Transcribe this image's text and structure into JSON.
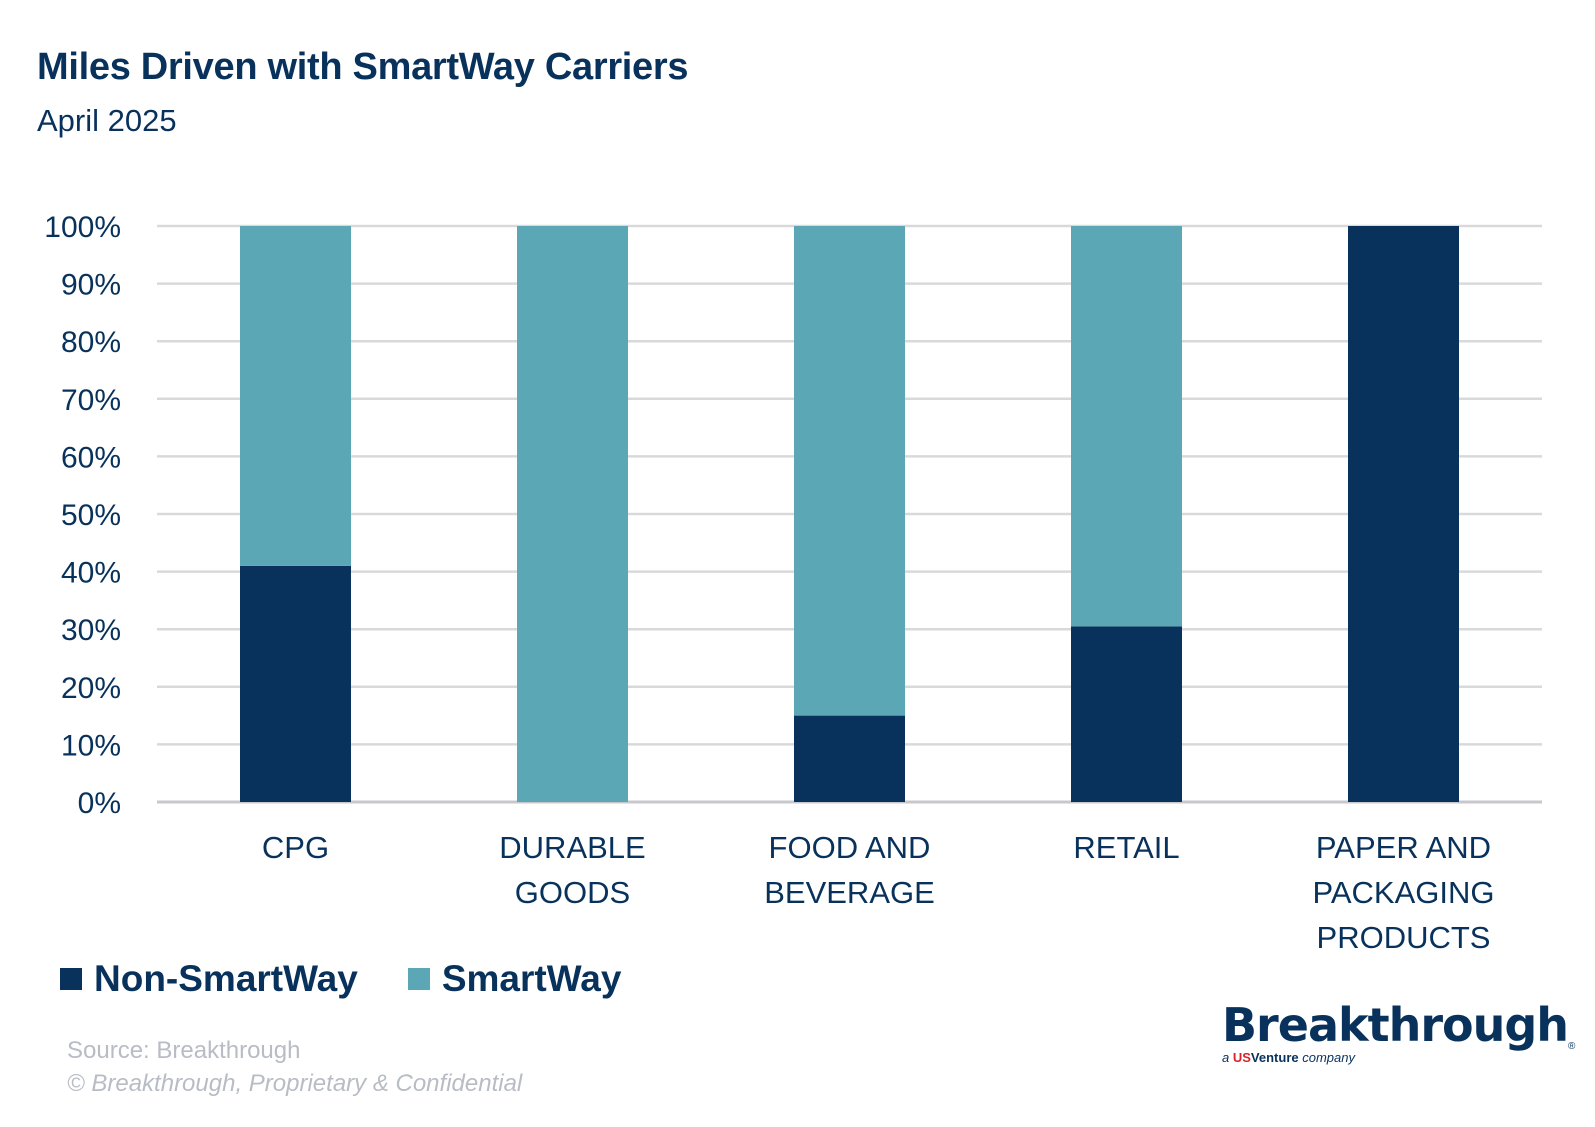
{
  "header": {
    "title": "Miles Driven with SmartWay Carriers",
    "subtitle": "April 2025"
  },
  "colors": {
    "non_smartway": "#08325c",
    "smartway": "#5ba7b5",
    "grid": "#d9d9d9",
    "text": "#08325c",
    "footer_text": "#b8bcc4"
  },
  "chart_data": {
    "type": "bar",
    "stacked": true,
    "title": "Miles Driven with SmartWay Carriers",
    "subtitle": "April 2025",
    "xlabel": "",
    "ylabel": "",
    "categories": [
      [
        "CPG"
      ],
      [
        "DURABLE",
        "GOODS"
      ],
      [
        "FOOD AND",
        "BEVERAGE"
      ],
      [
        "RETAIL"
      ],
      [
        "PAPER AND",
        "PACKAGING",
        "PRODUCTS"
      ]
    ],
    "category_names": [
      "CPG",
      "DURABLE GOODS",
      "FOOD AND BEVERAGE",
      "RETAIL",
      "PAPER AND PACKAGING PRODUCTS"
    ],
    "series": [
      {
        "name": "Non-SmartWay",
        "color": "#08325c",
        "values": [
          41,
          0,
          15,
          30.5,
          100
        ]
      },
      {
        "name": "SmartWay",
        "color": "#5ba7b5",
        "values": [
          59,
          100,
          85,
          69.5,
          0
        ]
      }
    ],
    "ylim": [
      0,
      100
    ],
    "yticks": [
      "0%",
      "10%",
      "20%",
      "30%",
      "40%",
      "50%",
      "60%",
      "70%",
      "80%",
      "90%",
      "100%"
    ],
    "grid": true,
    "legend": "bottom-left"
  },
  "legend": {
    "items": [
      {
        "label": "Non-SmartWay",
        "color": "#08325c"
      },
      {
        "label": "SmartWay",
        "color": "#5ba7b5"
      }
    ]
  },
  "footer": {
    "source": "Source: Breakthrough",
    "copyright": "© Breakthrough, Proprietary & Confidential"
  },
  "logo": {
    "name": "Breakthrough",
    "registered": "®",
    "tagline_prefix": "a",
    "tagline_us": "US",
    "tagline_venture": "Venture",
    "tagline_suffix": "company"
  }
}
